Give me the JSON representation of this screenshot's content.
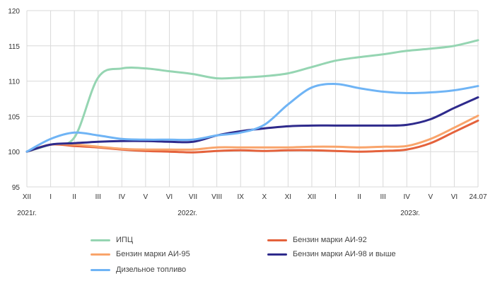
{
  "chart_data": {
    "type": "line",
    "title": "",
    "xlabel": "",
    "ylabel": "",
    "ylim": [
      95,
      120
    ],
    "yticks": [
      95,
      100,
      105,
      110,
      115,
      120
    ],
    "grid": true,
    "legend_placement": "bottom",
    "categories": [
      "XII",
      "I",
      "II",
      "III",
      "IV",
      "V",
      "VI",
      "VII",
      "VIII",
      "IX",
      "X",
      "XI",
      "XII",
      "I",
      "II",
      "III",
      "IV",
      "V",
      "VI",
      "24.07"
    ],
    "year_labels": [
      "2021г.",
      "2022г.",
      "2023г."
    ],
    "series": [
      {
        "name": "ИПЦ",
        "color": "#95d5b2",
        "values": [
          100,
          101,
          102,
          110.5,
          111.8,
          111.8,
          111.4,
          111,
          110.4,
          110.5,
          110.7,
          111.1,
          112,
          112.9,
          113.4,
          113.8,
          114.3,
          114.6,
          115,
          115.8
        ]
      },
      {
        "name": "Бензин марки АИ-92",
        "color": "#e4623c",
        "values": [
          100,
          101,
          100.8,
          100.6,
          100.3,
          100.1,
          100,
          99.9,
          100.1,
          100.2,
          100.1,
          100.2,
          100.2,
          100.1,
          100,
          100.1,
          100.3,
          101.2,
          102.8,
          104.4
        ]
      },
      {
        "name": "Бензин марки АИ-95",
        "color": "#f9a46b",
        "values": [
          100,
          101,
          101,
          100.7,
          100.4,
          100.3,
          100.3,
          100.3,
          100.6,
          100.6,
          100.6,
          100.6,
          100.7,
          100.7,
          100.6,
          100.7,
          100.8,
          101.8,
          103.4,
          105.1
        ]
      },
      {
        "name": "Бензин марки АИ-98 и выше",
        "color": "#2e2a8c",
        "values": [
          100,
          101,
          101.2,
          101.4,
          101.5,
          101.5,
          101.4,
          101.4,
          102.3,
          102.9,
          103.3,
          103.6,
          103.7,
          103.7,
          103.7,
          103.7,
          103.8,
          104.6,
          106.2,
          107.7
        ]
      },
      {
        "name": "Дизельное топливо",
        "color": "#6fb4f5",
        "values": [
          100,
          101.8,
          102.7,
          102.3,
          101.8,
          101.7,
          101.7,
          101.7,
          102.3,
          102.7,
          103.8,
          106.7,
          109.1,
          109.6,
          109,
          108.5,
          108.3,
          108.4,
          108.7,
          109.3
        ]
      }
    ]
  }
}
